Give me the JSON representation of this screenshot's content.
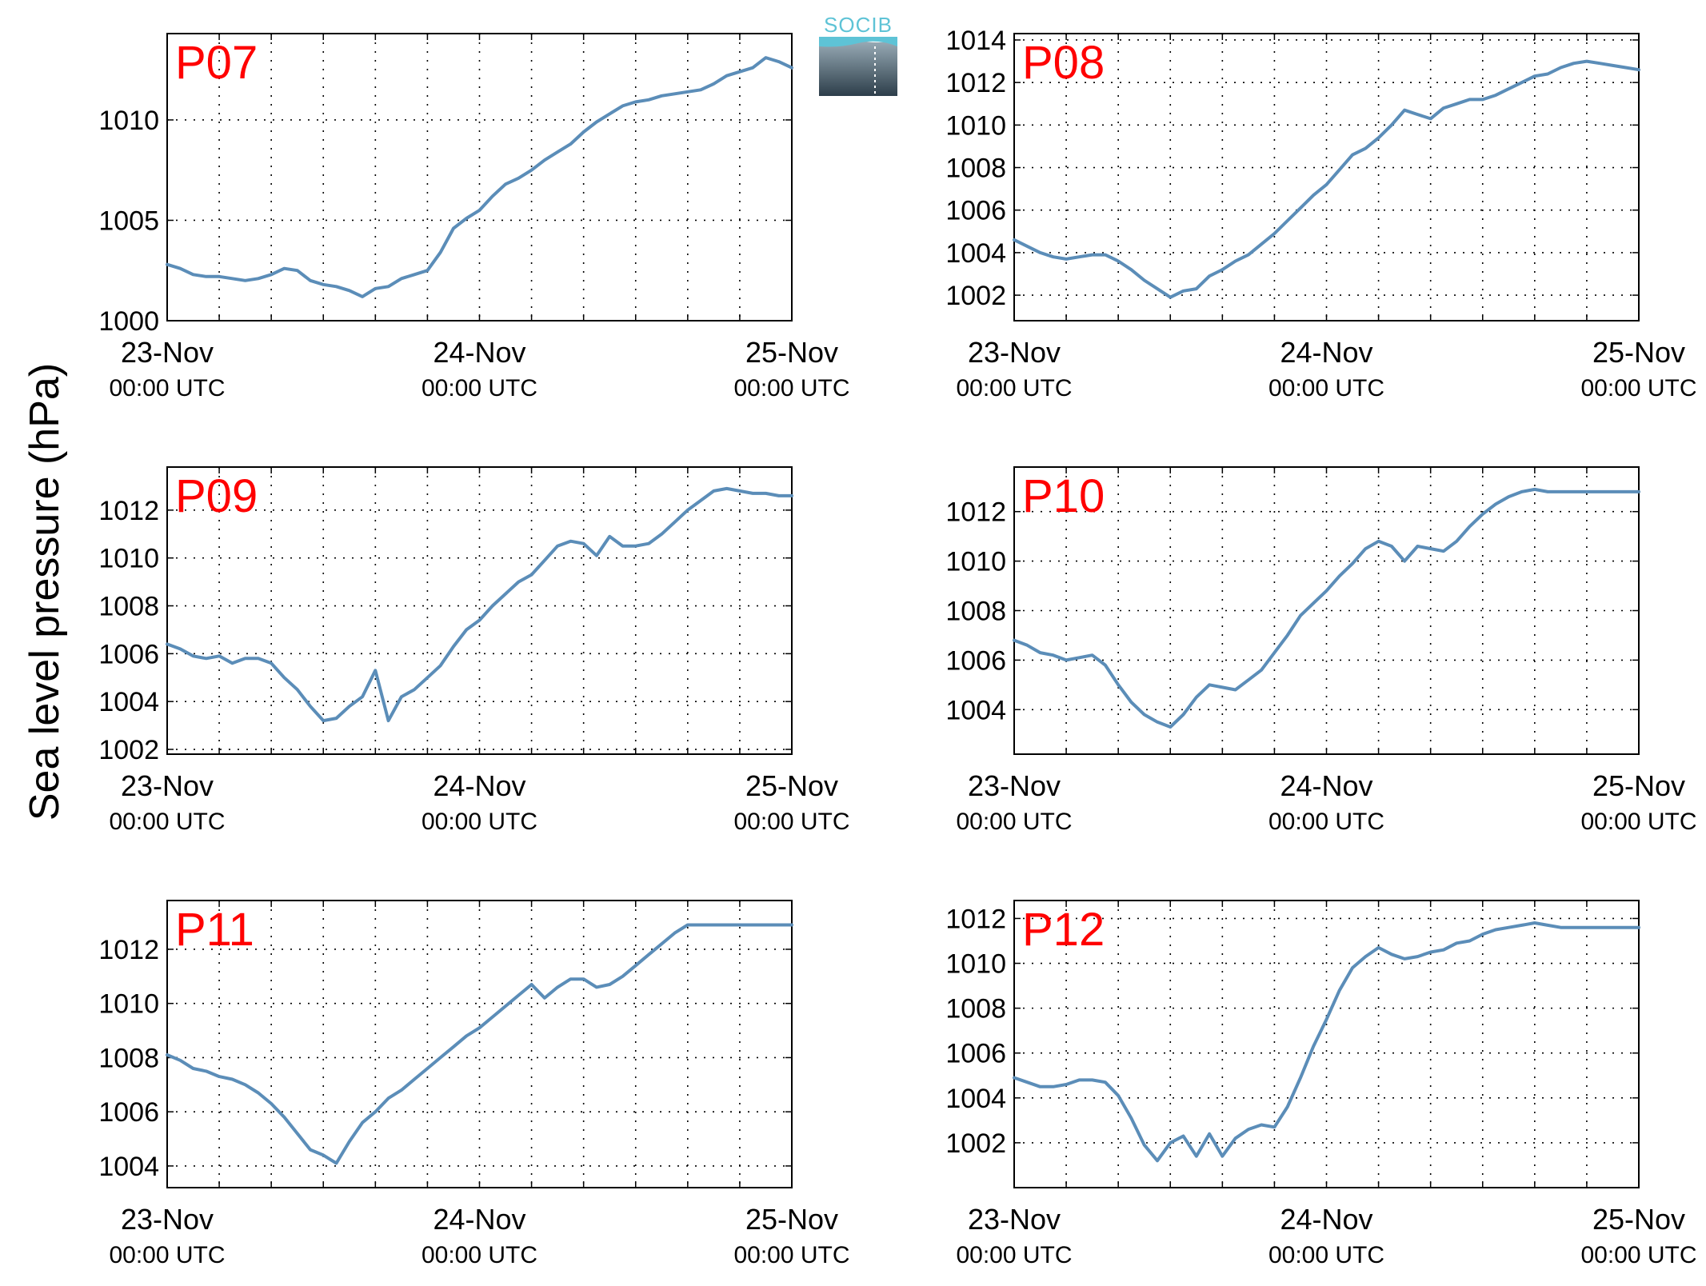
{
  "figure": {
    "ylabel": "Sea level pressure (hPa)",
    "logo_text": "SOCIB",
    "colors": {
      "line": "#5b8db8",
      "panel_label": "#ff0000",
      "logo_top": "#5ec3d6",
      "logo_bottom": "#2d3e4a"
    }
  },
  "chart_data": [
    {
      "type": "line",
      "title": "P07",
      "x_ticks": [
        "23-Nov",
        "24-Nov",
        "25-Nov"
      ],
      "x_tick_sub": "00:00 UTC",
      "xlim": [
        0,
        48
      ],
      "ylim": [
        1000,
        1014.3
      ],
      "yticks": [
        1000,
        1005,
        1010
      ],
      "grid": true,
      "x": [
        0,
        1,
        2,
        3,
        4,
        5,
        6,
        7,
        8,
        9,
        10,
        11,
        12,
        13,
        14,
        15,
        16,
        17,
        18,
        19,
        20,
        21,
        22,
        23,
        24,
        25,
        26,
        27,
        28,
        29,
        30,
        31,
        32,
        33,
        34,
        35,
        36,
        37,
        38,
        39,
        40,
        41,
        42,
        43,
        44,
        45,
        46,
        47,
        48
      ],
      "y": [
        1002.8,
        1002.6,
        1002.3,
        1002.2,
        1002.2,
        1002.1,
        1002.0,
        1002.1,
        1002.3,
        1002.6,
        1002.5,
        1002.0,
        1001.8,
        1001.7,
        1001.5,
        1001.2,
        1001.6,
        1001.7,
        1002.1,
        1002.3,
        1002.5,
        1003.4,
        1004.6,
        1005.1,
        1005.5,
        1006.2,
        1006.8,
        1007.1,
        1007.5,
        1008.0,
        1008.4,
        1008.8,
        1009.4,
        1009.9,
        1010.3,
        1010.7,
        1010.9,
        1011.0,
        1011.2,
        1011.3,
        1011.4,
        1011.5,
        1011.8,
        1012.2,
        1012.4,
        1012.6,
        1013.1,
        1012.9,
        1012.6
      ]
    },
    {
      "type": "line",
      "title": "P08",
      "x_ticks": [
        "23-Nov",
        "24-Nov",
        "25-Nov"
      ],
      "x_tick_sub": "00:00 UTC",
      "xlim": [
        0,
        48
      ],
      "ylim": [
        1000.8,
        1014.3
      ],
      "yticks": [
        1002,
        1004,
        1006,
        1008,
        1010,
        1012,
        1014
      ],
      "grid": true,
      "x": [
        0,
        1,
        2,
        3,
        4,
        5,
        6,
        7,
        8,
        9,
        10,
        11,
        12,
        13,
        14,
        15,
        16,
        17,
        18,
        19,
        20,
        21,
        22,
        23,
        24,
        25,
        26,
        27,
        28,
        29,
        30,
        31,
        32,
        33,
        34,
        35,
        36,
        37,
        38,
        39,
        40,
        41,
        42,
        43,
        44,
        45,
        46,
        47,
        48
      ],
      "y": [
        1004.6,
        1004.3,
        1004.0,
        1003.8,
        1003.7,
        1003.8,
        1003.9,
        1003.9,
        1003.6,
        1003.2,
        1002.7,
        1002.3,
        1001.9,
        1002.2,
        1002.3,
        1002.9,
        1003.2,
        1003.6,
        1003.9,
        1004.4,
        1004.9,
        1005.5,
        1006.1,
        1006.7,
        1007.2,
        1007.9,
        1008.6,
        1008.9,
        1009.4,
        1010.0,
        1010.7,
        1010.5,
        1010.3,
        1010.8,
        1011.0,
        1011.2,
        1011.2,
        1011.4,
        1011.7,
        1012.0,
        1012.3,
        1012.4,
        1012.7,
        1012.9,
        1013.0,
        1012.9,
        1012.8,
        1012.7,
        1012.6
      ]
    },
    {
      "type": "line",
      "title": "P09",
      "x_ticks": [
        "23-Nov",
        "24-Nov",
        "25-Nov"
      ],
      "x_tick_sub": "00:00 UTC",
      "xlim": [
        0,
        48
      ],
      "ylim": [
        1001.8,
        1013.8
      ],
      "yticks": [
        1002,
        1004,
        1006,
        1008,
        1010,
        1012
      ],
      "grid": true,
      "x": [
        0,
        1,
        2,
        3,
        4,
        5,
        6,
        7,
        8,
        9,
        10,
        11,
        12,
        13,
        14,
        15,
        16,
        17,
        18,
        19,
        20,
        21,
        22,
        23,
        24,
        25,
        26,
        27,
        28,
        29,
        30,
        31,
        32,
        33,
        34,
        35,
        36,
        37,
        38,
        39,
        40,
        41,
        42,
        43,
        44,
        45,
        46,
        47,
        48
      ],
      "y": [
        1006.4,
        1006.2,
        1005.9,
        1005.8,
        1005.9,
        1005.6,
        1005.8,
        1005.8,
        1005.6,
        1005.0,
        1004.5,
        1003.8,
        1003.2,
        1003.3,
        1003.8,
        1004.2,
        1005.3,
        1003.2,
        1004.2,
        1004.5,
        1005.0,
        1005.5,
        1006.3,
        1007.0,
        1007.4,
        1008.0,
        1008.5,
        1009.0,
        1009.3,
        1009.9,
        1010.5,
        1010.7,
        1010.6,
        1010.1,
        1010.9,
        1010.5,
        1010.5,
        1010.6,
        1011.0,
        1011.5,
        1012.0,
        1012.4,
        1012.8,
        1012.9,
        1012.8,
        1012.7,
        1012.7,
        1012.6,
        1012.6
      ]
    },
    {
      "type": "line",
      "title": "P10",
      "x_ticks": [
        "23-Nov",
        "24-Nov",
        "25-Nov"
      ],
      "x_tick_sub": "00:00 UTC",
      "xlim": [
        0,
        48
      ],
      "ylim": [
        1002.2,
        1013.8
      ],
      "yticks": [
        1004,
        1006,
        1008,
        1010,
        1012
      ],
      "grid": true,
      "x": [
        0,
        1,
        2,
        3,
        4,
        5,
        6,
        7,
        8,
        9,
        10,
        11,
        12,
        13,
        14,
        15,
        16,
        17,
        18,
        19,
        20,
        21,
        22,
        23,
        24,
        25,
        26,
        27,
        28,
        29,
        30,
        31,
        32,
        33,
        34,
        35,
        36,
        37,
        38,
        39,
        40,
        41,
        42,
        43,
        44,
        45,
        46,
        47,
        48
      ],
      "y": [
        1006.8,
        1006.6,
        1006.3,
        1006.2,
        1006.0,
        1006.1,
        1006.2,
        1005.8,
        1005.0,
        1004.3,
        1003.8,
        1003.5,
        1003.3,
        1003.8,
        1004.5,
        1005.0,
        1004.9,
        1004.8,
        1005.2,
        1005.6,
        1006.3,
        1007.0,
        1007.8,
        1008.3,
        1008.8,
        1009.4,
        1009.9,
        1010.5,
        1010.8,
        1010.6,
        1010.0,
        1010.6,
        1010.5,
        1010.4,
        1010.8,
        1011.4,
        1011.9,
        1012.3,
        1012.6,
        1012.8,
        1012.9,
        1012.8,
        1012.8,
        1012.8,
        1012.8,
        1012.8,
        1012.8,
        1012.8,
        1012.8
      ]
    },
    {
      "type": "line",
      "title": "P11",
      "x_ticks": [
        "23-Nov",
        "24-Nov",
        "25-Nov"
      ],
      "x_tick_sub": "00:00 UTC",
      "xlim": [
        0,
        48
      ],
      "ylim": [
        1003.2,
        1013.8
      ],
      "yticks": [
        1004,
        1006,
        1008,
        1010,
        1012
      ],
      "grid": true,
      "x": [
        0,
        1,
        2,
        3,
        4,
        5,
        6,
        7,
        8,
        9,
        10,
        11,
        12,
        13,
        14,
        15,
        16,
        17,
        18,
        19,
        20,
        21,
        22,
        23,
        24,
        25,
        26,
        27,
        28,
        29,
        30,
        31,
        32,
        33,
        34,
        35,
        36,
        37,
        38,
        39,
        40,
        41,
        42,
        43,
        44,
        45,
        46,
        47,
        48
      ],
      "y": [
        1008.1,
        1007.9,
        1007.6,
        1007.5,
        1007.3,
        1007.2,
        1007.0,
        1006.7,
        1006.3,
        1005.8,
        1005.2,
        1004.6,
        1004.4,
        1004.1,
        1004.9,
        1005.6,
        1006.0,
        1006.5,
        1006.8,
        1007.2,
        1007.6,
        1008.0,
        1008.4,
        1008.8,
        1009.1,
        1009.5,
        1009.9,
        1010.3,
        1010.7,
        1010.2,
        1010.6,
        1010.9,
        1010.9,
        1010.6,
        1010.7,
        1011.0,
        1011.4,
        1011.8,
        1012.2,
        1012.6,
        1012.9,
        1012.9,
        1012.9,
        1012.9,
        1012.9,
        1012.9,
        1012.9,
        1012.9,
        1012.9
      ]
    },
    {
      "type": "line",
      "title": "P12",
      "x_ticks": [
        "23-Nov",
        "24-Nov",
        "25-Nov"
      ],
      "x_tick_sub": "00:00 UTC",
      "xlim": [
        0,
        48
      ],
      "ylim": [
        1000,
        1012.8
      ],
      "yticks": [
        1002,
        1004,
        1006,
        1008,
        1010,
        1012
      ],
      "grid": true,
      "x": [
        0,
        1,
        2,
        3,
        4,
        5,
        6,
        7,
        8,
        9,
        10,
        11,
        12,
        13,
        14,
        15,
        16,
        17,
        18,
        19,
        20,
        21,
        22,
        23,
        24,
        25,
        26,
        27,
        28,
        29,
        30,
        31,
        32,
        33,
        34,
        35,
        36,
        37,
        38,
        39,
        40,
        41,
        42,
        43,
        44,
        45,
        46,
        47,
        48
      ],
      "y": [
        1004.9,
        1004.7,
        1004.5,
        1004.5,
        1004.6,
        1004.8,
        1004.8,
        1004.7,
        1004.1,
        1003.1,
        1001.9,
        1001.2,
        1002.0,
        1002.3,
        1001.4,
        1002.4,
        1001.4,
        1002.2,
        1002.6,
        1002.8,
        1002.7,
        1003.6,
        1004.9,
        1006.3,
        1007.5,
        1008.8,
        1009.8,
        1010.3,
        1010.7,
        1010.4,
        1010.2,
        1010.3,
        1010.5,
        1010.6,
        1010.9,
        1011.0,
        1011.3,
        1011.5,
        1011.6,
        1011.7,
        1011.8,
        1011.7,
        1011.6,
        1011.6,
        1011.6,
        1011.6,
        1011.6,
        1011.6,
        1011.6
      ]
    }
  ]
}
